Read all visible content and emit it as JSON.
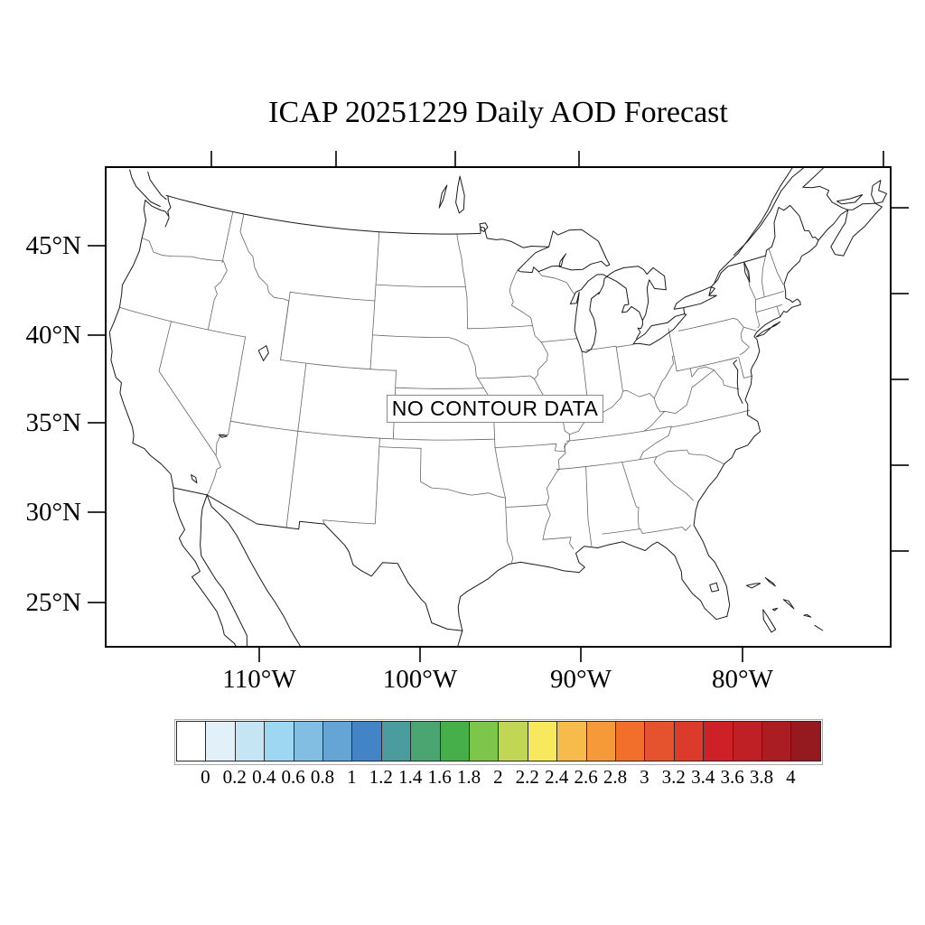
{
  "title": "ICAP 20251229 Daily AOD Forecast",
  "map": {
    "no_data_label": "NO CONTOUR DATA"
  },
  "axes": {
    "lat_labels": [
      "45°N",
      "40°N",
      "35°N",
      "30°N",
      "25°N"
    ],
    "lon_labels": [
      "110°W",
      "100°W",
      "90°W",
      "80°W"
    ]
  },
  "colorbar": {
    "tick_labels": [
      "0",
      "0.2",
      "0.4",
      "0.6",
      "0.8",
      "1",
      "1.2",
      "1.4",
      "1.6",
      "1.8",
      "2",
      "2.2",
      "2.4",
      "2.6",
      "2.8",
      "3",
      "3.2",
      "3.4",
      "3.6",
      "3.8",
      "4"
    ],
    "cell_colors": [
      "#FFFFFF",
      "#E2F1F9",
      "#C5E5F5",
      "#9ED7F2",
      "#82BEE1",
      "#64A5D6",
      "#4384C6",
      "#4A9C9E",
      "#4BA571",
      "#47AF4A",
      "#7EC54B",
      "#C1D655",
      "#F7E85D",
      "#F6BB4B",
      "#F59939",
      "#F26E2B",
      "#E5522E",
      "#DC3B2B",
      "#CE2127",
      "#BF2026",
      "#A91D23",
      "#951A1F"
    ]
  },
  "chart_data": {
    "type": "heatmap",
    "title": "ICAP 20251229 Daily AOD Forecast",
    "region": "Contiguous United States",
    "status": "NO CONTOUR DATA",
    "series": [],
    "lat_tick_values_degN": [
      45,
      40,
      35,
      30,
      25
    ],
    "lon_tick_values_degW": [
      110,
      100,
      90,
      80
    ],
    "colorbar_levels": [
      0,
      0.2,
      0.4,
      0.6,
      0.8,
      1,
      1.2,
      1.4,
      1.6,
      1.8,
      2,
      2.2,
      2.4,
      2.6,
      2.8,
      3,
      3.2,
      3.4,
      3.6,
      3.8,
      4
    ],
    "colorbar_colors": [
      "#FFFFFF",
      "#E2F1F9",
      "#C5E5F5",
      "#9ED7F2",
      "#82BEE1",
      "#64A5D6",
      "#4384C6",
      "#4A9C9E",
      "#4BA571",
      "#47AF4A",
      "#7EC54B",
      "#C1D655",
      "#F7E85D",
      "#F6BB4B",
      "#F59939",
      "#F26E2B",
      "#E5522E",
      "#DC3B2B",
      "#CE2127",
      "#BF2026",
      "#A91D23",
      "#951A1F"
    ],
    "legend_position": "bottom",
    "grid": false
  }
}
